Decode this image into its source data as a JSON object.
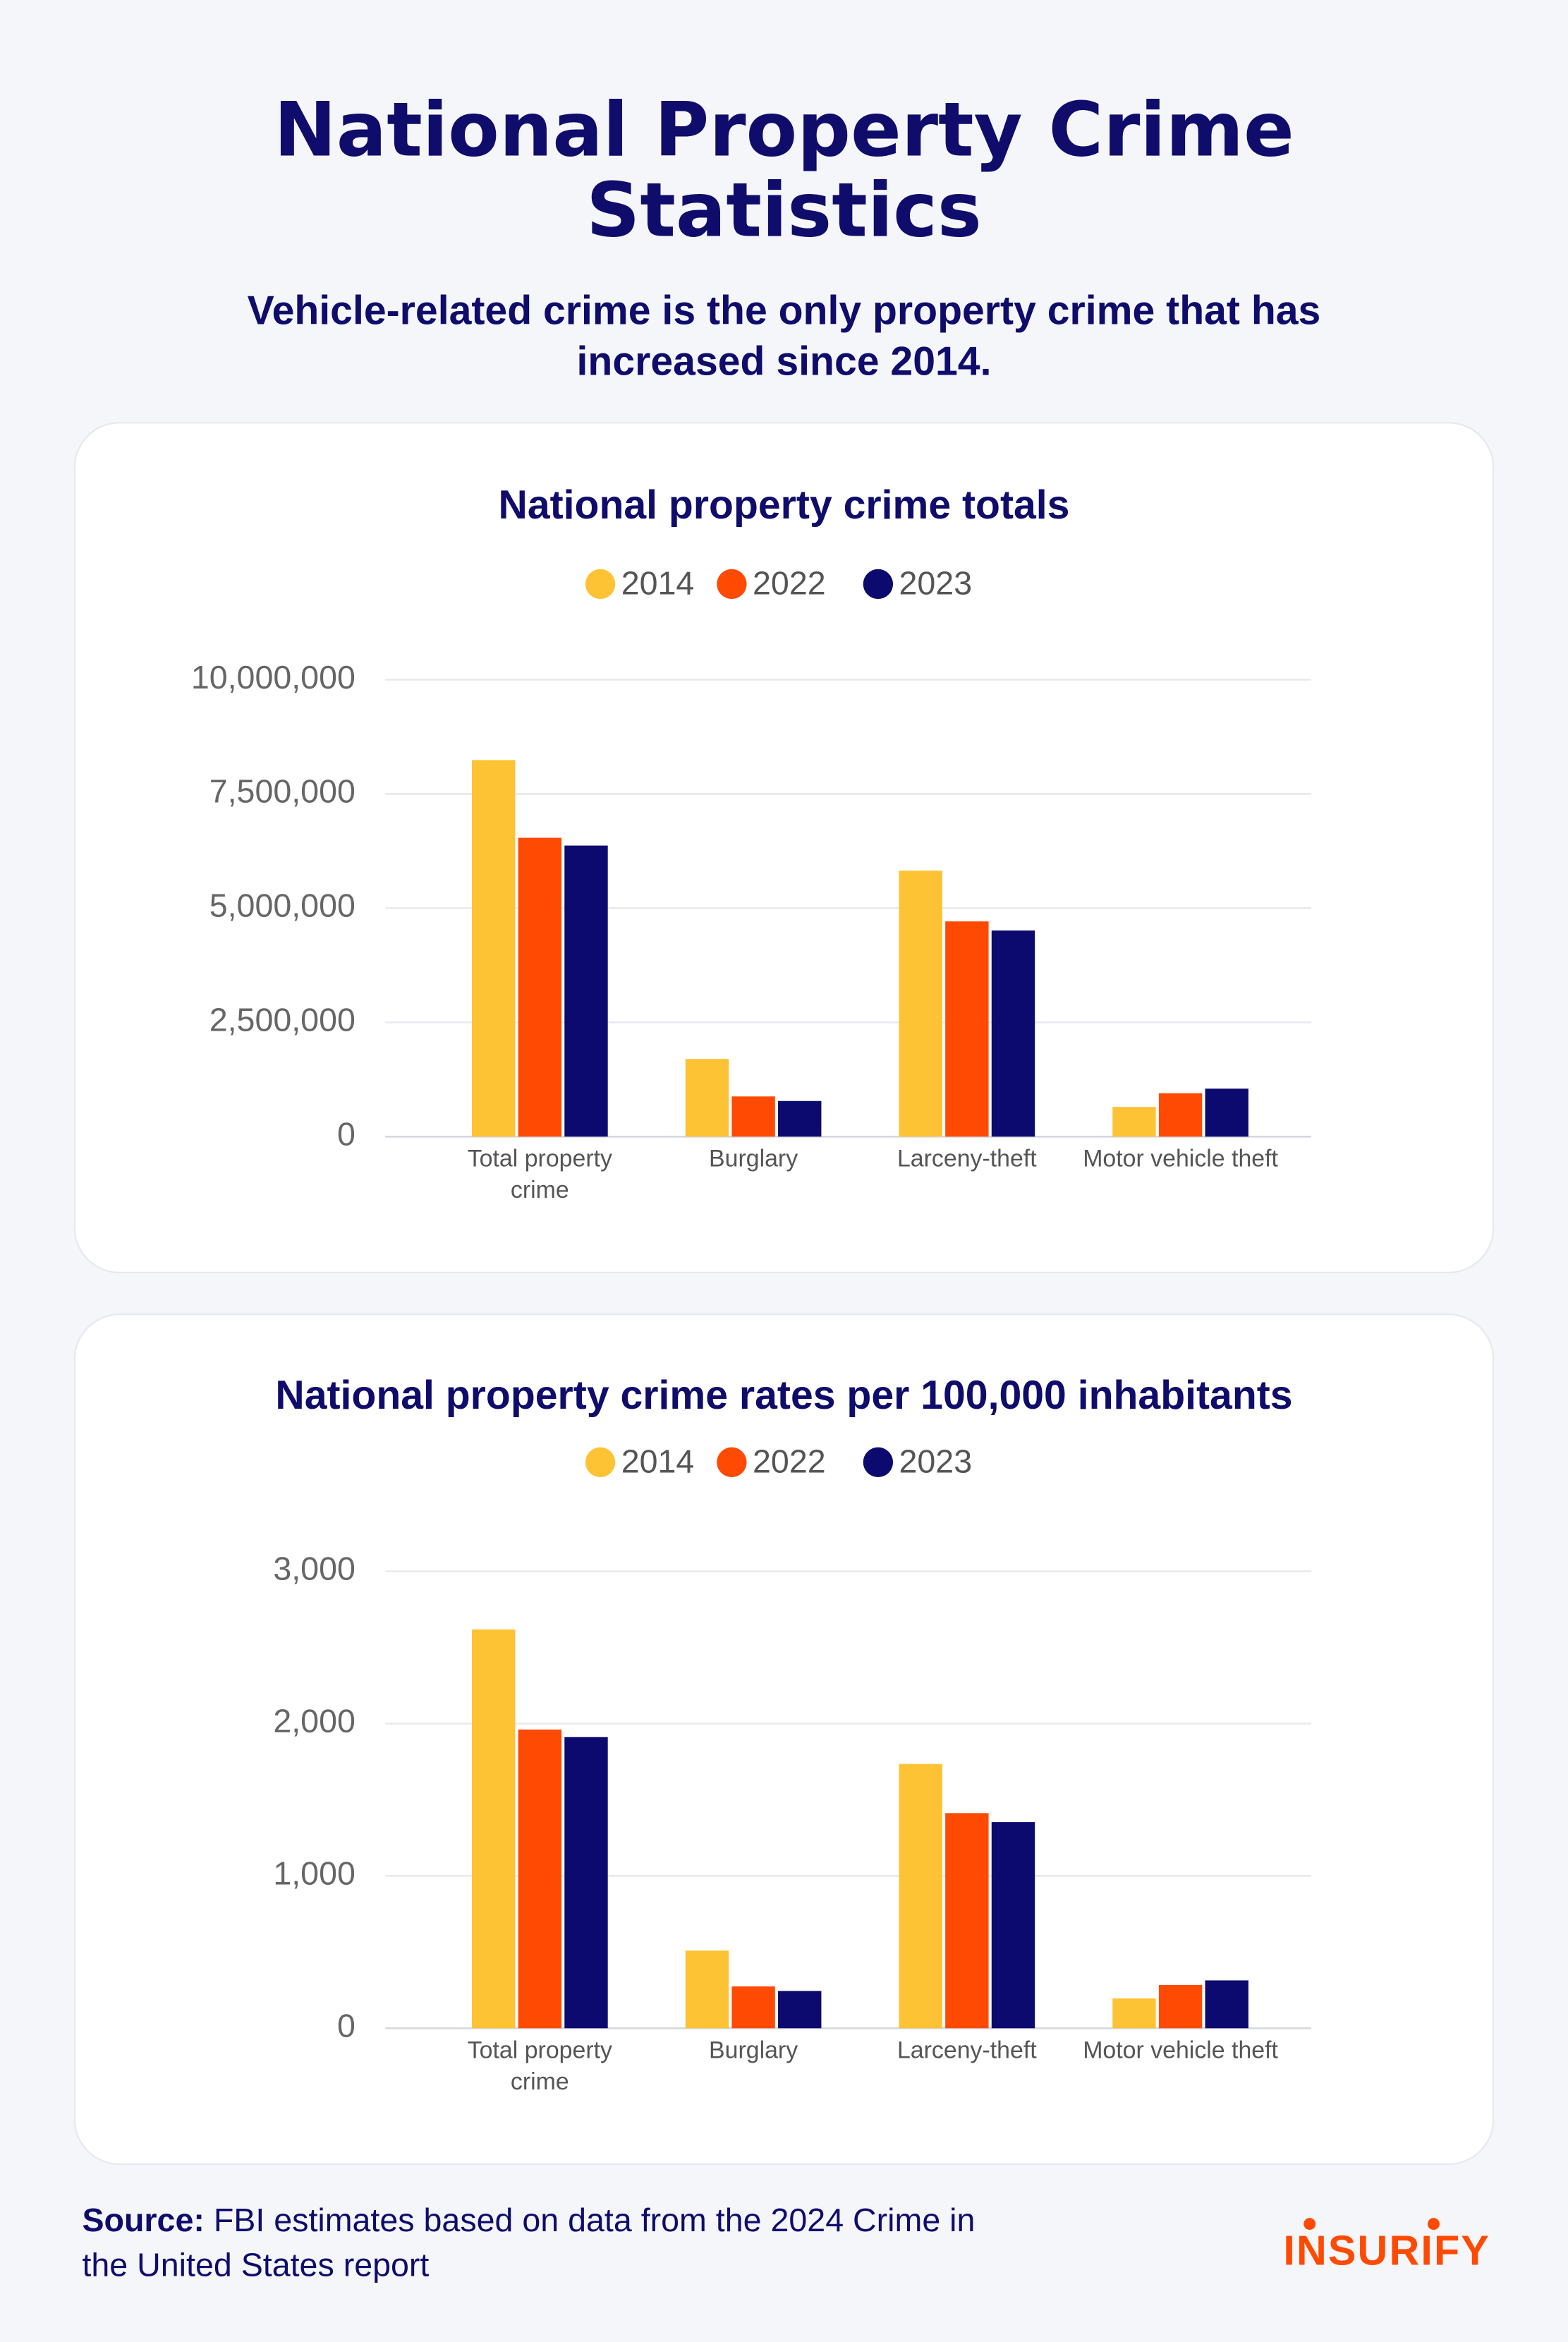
{
  "header": {
    "title": "National Property Crime Statistics",
    "subtitle": "Vehicle-related crime is the only property crime that has increased since 2014."
  },
  "chart_data": [
    {
      "type": "bar",
      "title": "National property crime totals",
      "categories": [
        "Total property crime",
        "Burglary",
        "Larceny-theft",
        "Motor vehicle theft"
      ],
      "series": [
        {
          "name": "2014",
          "color": "#fdc334",
          "values": [
            8240000,
            1700000,
            5820000,
            650000
          ]
        },
        {
          "name": "2022",
          "color": "#fe4a03",
          "values": [
            6540000,
            880000,
            4710000,
            950000
          ]
        },
        {
          "name": "2023",
          "color": "#0c0a6e",
          "values": [
            6370000,
            780000,
            4510000,
            1050000
          ]
        }
      ],
      "ylim": [
        0,
        10000000
      ],
      "yticks": [
        0,
        {
          "value": 2500000,
          "label": "2,500,000"
        },
        {
          "value": 5000000,
          "label": "5,000,000"
        },
        {
          "value": 7500000,
          "label": "7,500,000"
        },
        {
          "value": 10000000,
          "label": "10,000,000"
        }
      ],
      "grid": true,
      "legend": "top"
    },
    {
      "type": "bar",
      "title": "National property crime rates per 100,000 inhabitants",
      "categories": [
        "Total property crime",
        "Burglary",
        "Larceny-theft",
        "Motor vehicle theft"
      ],
      "series": [
        {
          "name": "2014",
          "color": "#fdc334",
          "values": [
            2618,
            510,
            1735,
            196
          ]
        },
        {
          "name": "2022",
          "color": "#fe4a03",
          "values": [
            1961,
            275,
            1412,
            284
          ]
        },
        {
          "name": "2023",
          "color": "#0c0a6e",
          "values": [
            1912,
            245,
            1353,
            314
          ]
        }
      ],
      "ylim": [
        0,
        3000
      ],
      "yticks": [
        0,
        {
          "value": 1000,
          "label": "1,000"
        },
        {
          "value": 2000,
          "label": "2,000"
        },
        {
          "value": 3000,
          "label": "3,000"
        }
      ],
      "grid": true,
      "legend": "top"
    }
  ],
  "footer": {
    "source_label": "Source:",
    "source_text": "FBI estimates based on data from the 2024 Crime in the United States report",
    "logo": "INSURIFY"
  }
}
